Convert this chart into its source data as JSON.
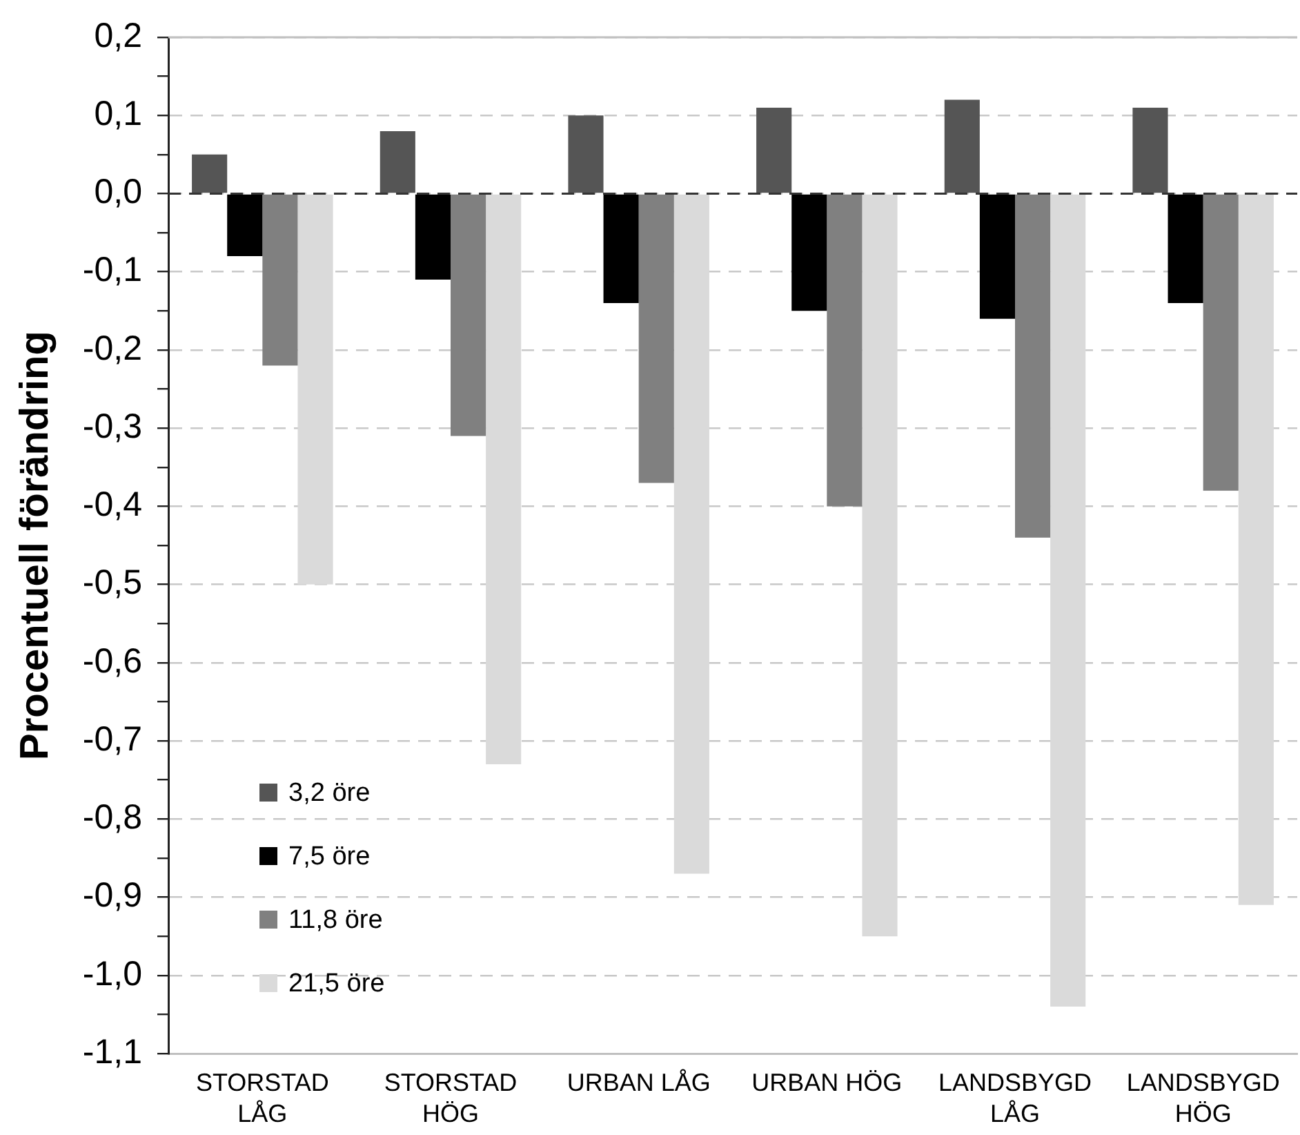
{
  "chart_data": {
    "type": "bar",
    "ylabel": "Procentuell förändring",
    "categories": [
      "STORSTAD LÅG",
      "STORSTAD HÖG",
      "URBAN LÅG",
      "URBAN HÖG",
      "LANDSBYGD LÅG",
      "LANDSBYGD HÖG"
    ],
    "series": [
      {
        "name": "3,2 öre",
        "color": "#555555",
        "values": [
          0.05,
          0.08,
          0.1,
          0.11,
          0.12,
          0.11
        ]
      },
      {
        "name": "7,5 öre",
        "color": "#000000",
        "values": [
          -0.08,
          -0.11,
          -0.14,
          -0.15,
          -0.16,
          -0.14
        ]
      },
      {
        "name": "11,8 öre",
        "color": "#808080",
        "values": [
          -0.22,
          -0.31,
          -0.37,
          -0.4,
          -0.44,
          -0.38
        ]
      },
      {
        "name": "21,5 öre",
        "color": "#dadada",
        "values": [
          -0.5,
          -0.73,
          -0.87,
          -0.95,
          -1.04,
          -0.91
        ]
      }
    ],
    "ylim": [
      -1.1,
      0.2
    ],
    "yticks": [
      {
        "value": -1.1,
        "label": "-1,1"
      },
      {
        "value": -1.05,
        "label": null
      },
      {
        "value": -1,
        "label": "-1,0"
      },
      {
        "value": -0.95,
        "label": null
      },
      {
        "value": -0.9,
        "label": "-0,9"
      },
      {
        "value": -0.85,
        "label": null
      },
      {
        "value": -0.8,
        "label": "-0,8"
      },
      {
        "value": -0.75,
        "label": null
      },
      {
        "value": -0.7,
        "label": "-0,7"
      },
      {
        "value": -0.65,
        "label": null
      },
      {
        "value": -0.6,
        "label": "-0,6"
      },
      {
        "value": -0.55,
        "label": null
      },
      {
        "value": -0.5,
        "label": "-0,5"
      },
      {
        "value": -0.45,
        "label": null
      },
      {
        "value": -0.4,
        "label": "-0,4"
      },
      {
        "value": -0.35,
        "label": null
      },
      {
        "value": -0.3,
        "label": "-0,3"
      },
      {
        "value": -0.25,
        "label": null
      },
      {
        "value": -0.2,
        "label": "-0,2"
      },
      {
        "value": -0.15,
        "label": null
      },
      {
        "value": -0.1,
        "label": "-0,1"
      },
      {
        "value": -0.05,
        "label": null
      },
      {
        "value": 0,
        "label": "0,0"
      },
      {
        "value": 0.05,
        "label": null
      },
      {
        "value": 0.1,
        "label": "0,1"
      },
      {
        "value": 0.15,
        "label": null
      },
      {
        "value": 0.2,
        "label": "0,2"
      }
    ],
    "grid": "y",
    "legend": "bottom left",
    "ref_lines": [
      {
        "axis": "y",
        "value": 0,
        "color": "#333333",
        "line_style": "dashed"
      }
    ]
  }
}
